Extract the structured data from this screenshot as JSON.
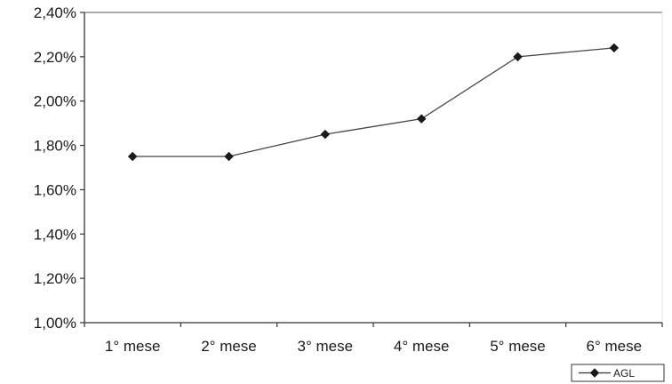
{
  "chart_data": {
    "type": "line",
    "title": "",
    "xlabel": "",
    "ylabel": "",
    "categories": [
      "1° mese",
      "2° mese",
      "3° mese",
      "4° mese",
      "5° mese",
      "6° mese"
    ],
    "series": [
      {
        "name": "AGL",
        "values": [
          1.75,
          1.75,
          1.85,
          1.92,
          2.2,
          2.24
        ],
        "color": "#1a1a1a",
        "marker": "diamond"
      }
    ],
    "ylim": [
      1.0,
      2.4
    ],
    "yticks": [
      {
        "value": 1.0,
        "label": "1,00%"
      },
      {
        "value": 1.2,
        "label": "1,20%"
      },
      {
        "value": 1.4,
        "label": "1,40%"
      },
      {
        "value": 1.6,
        "label": "1,60%"
      },
      {
        "value": 1.8,
        "label": "1,80%"
      },
      {
        "value": 2.0,
        "label": "2,00%"
      },
      {
        "value": 2.2,
        "label": "2,20%"
      },
      {
        "value": 2.4,
        "label": "2,40%"
      }
    ],
    "grid": false,
    "legend": {
      "position": "bottom-right",
      "entries": [
        "AGL"
      ]
    }
  }
}
